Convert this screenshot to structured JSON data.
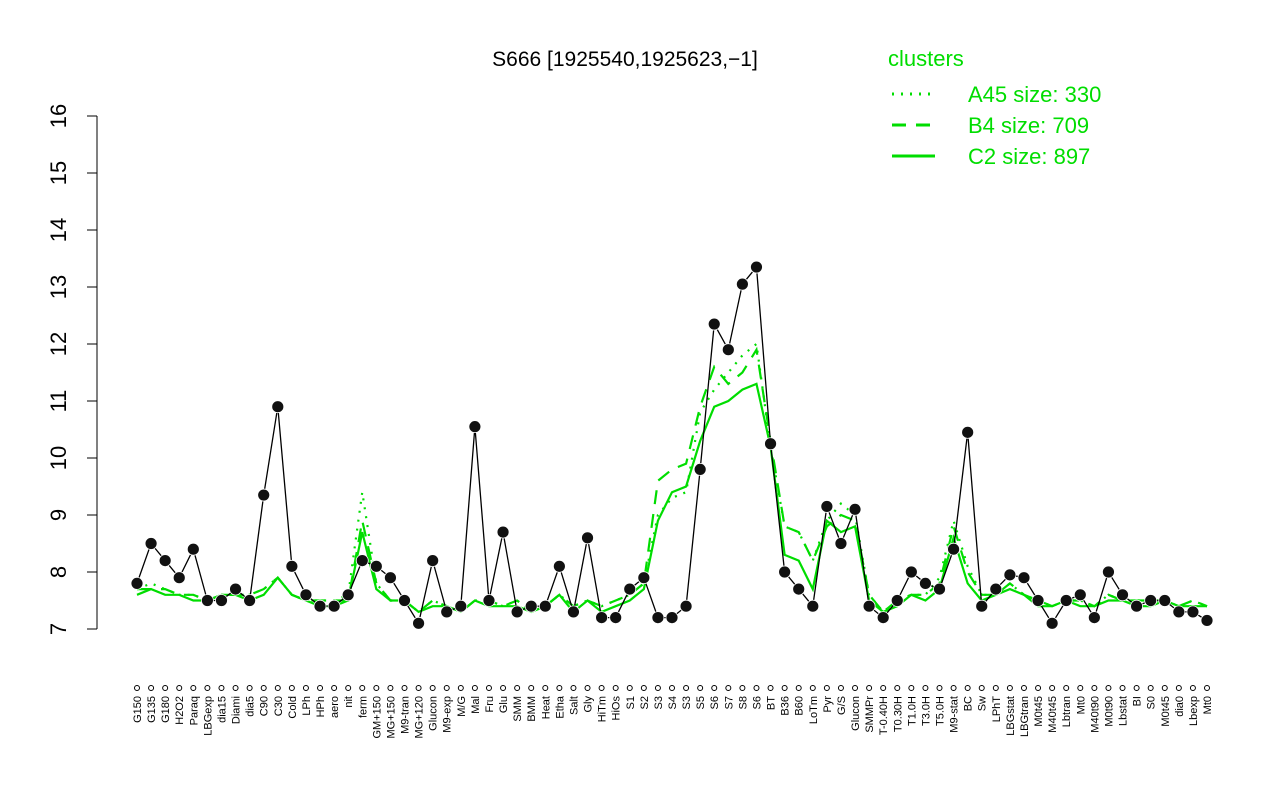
{
  "chart_data": {
    "type": "line",
    "title": "S666 [1925540,1925623,−1]",
    "legend_title": "clusters",
    "legend_position": "top-right",
    "categories": [
      "G150",
      "G135",
      "G180",
      "H2O2",
      "Paraq",
      "LBGexp",
      "dia15",
      "Diami",
      "dia5",
      "C90",
      "C30",
      "Cold",
      "LPh",
      "HPh",
      "aero",
      "nit",
      "ferm",
      "GM+150",
      "MG+150",
      "M9-tran",
      "MG+120",
      "Glucon",
      "M9-exp",
      "M/G",
      "Mal",
      "Fru",
      "Glu",
      "SMM",
      "BMM",
      "Heat",
      "Etha",
      "Salt",
      "Gly",
      "HiTm",
      "HiOs",
      "S1",
      "S2",
      "S3",
      "S4",
      "S3",
      "S5",
      "S6",
      "S7",
      "S8",
      "S6",
      "BT",
      "B36",
      "B60",
      "LoTm",
      "Pyr",
      "G/S",
      "Glucon",
      "SMMPr",
      "T-0.40H",
      "T0.30H",
      "T1.0H",
      "T3.0H",
      "T5.0H",
      "M9-stat",
      "BC",
      "Sw",
      "LPhT",
      "LBGstat",
      "LBGtran",
      "M0t45",
      "M40t45",
      "Lbtran",
      "Mt0",
      "M40t90",
      "M0t90",
      "Lbstat",
      "BI",
      "S0",
      "M0t45",
      "dia0",
      "Lbexp",
      "Mt0"
    ],
    "values": [
      7.8,
      8.5,
      8.2,
      7.9,
      8.4,
      7.5,
      7.5,
      7.7,
      7.5,
      9.35,
      10.9,
      8.1,
      7.6,
      7.4,
      7.4,
      7.6,
      8.2,
      8.1,
      7.9,
      7.5,
      7.1,
      8.2,
      7.3,
      7.4,
      10.55,
      7.5,
      8.7,
      7.3,
      7.4,
      7.4,
      8.1,
      7.3,
      8.6,
      7.2,
      7.2,
      7.7,
      7.9,
      7.2,
      7.2,
      7.4,
      9.8,
      12.35,
      11.9,
      13.05,
      13.35,
      10.25,
      8.0,
      7.7,
      7.4,
      9.15,
      8.5,
      9.1,
      7.4,
      7.2,
      7.5,
      8.0,
      7.8,
      7.7,
      8.4,
      10.45,
      7.4,
      7.7,
      7.95,
      7.9,
      7.5,
      7.1,
      7.5,
      7.6,
      7.2,
      8.0,
      7.6,
      7.4,
      7.5,
      7.5,
      7.3,
      7.3,
      7.15
    ],
    "color": "#000000",
    "series": [
      {
        "name": "A45 size: 330",
        "color": "#00dd00",
        "dash": "dotted",
        "values": [
          7.7,
          7.8,
          7.7,
          7.6,
          7.6,
          7.5,
          7.6,
          7.6,
          7.6,
          7.7,
          7.9,
          7.6,
          7.5,
          7.5,
          7.5,
          7.6,
          9.4,
          7.8,
          7.5,
          7.5,
          7.3,
          7.5,
          7.4,
          7.3,
          7.5,
          7.5,
          7.4,
          7.5,
          7.3,
          7.4,
          7.6,
          7.4,
          7.5,
          7.4,
          7.5,
          7.6,
          7.8,
          9.0,
          9.3,
          9.4,
          10.8,
          11.2,
          11.5,
          11.8,
          12.0,
          10.2,
          8.8,
          8.7,
          8.2,
          8.9,
          9.2,
          9.0,
          7.6,
          7.3,
          7.5,
          7.6,
          7.6,
          7.9,
          8.9,
          8.1,
          7.6,
          7.6,
          7.8,
          7.6,
          7.5,
          7.4,
          7.5,
          7.5,
          7.4,
          7.6,
          7.5,
          7.5,
          7.5,
          7.5,
          7.4,
          7.5,
          7.4
        ]
      },
      {
        "name": "B4 size: 709",
        "color": "#00dd00",
        "dash": "dashed",
        "values": [
          7.7,
          7.7,
          7.7,
          7.6,
          7.6,
          7.5,
          7.6,
          7.6,
          7.6,
          7.7,
          7.9,
          7.6,
          7.5,
          7.5,
          7.5,
          7.5,
          8.9,
          7.8,
          7.5,
          7.5,
          7.3,
          7.5,
          7.4,
          7.3,
          7.5,
          7.5,
          7.4,
          7.5,
          7.3,
          7.4,
          7.6,
          7.4,
          7.5,
          7.4,
          7.5,
          7.6,
          7.8,
          9.6,
          9.8,
          9.9,
          10.9,
          11.6,
          11.3,
          11.5,
          11.9,
          10.3,
          8.8,
          8.7,
          8.2,
          8.8,
          9.0,
          8.9,
          7.6,
          7.3,
          7.5,
          7.6,
          7.6,
          7.8,
          8.8,
          8.0,
          7.6,
          7.6,
          7.8,
          7.6,
          7.5,
          7.4,
          7.5,
          7.5,
          7.4,
          7.6,
          7.5,
          7.5,
          7.5,
          7.5,
          7.4,
          7.5,
          7.4
        ]
      },
      {
        "name": "C2 size: 897",
        "color": "#00dd00",
        "dash": "solid",
        "values": [
          7.6,
          7.7,
          7.6,
          7.6,
          7.5,
          7.5,
          7.6,
          7.6,
          7.5,
          7.6,
          7.9,
          7.6,
          7.5,
          7.4,
          7.4,
          7.5,
          8.7,
          7.7,
          7.5,
          7.5,
          7.3,
          7.4,
          7.4,
          7.3,
          7.5,
          7.4,
          7.4,
          7.4,
          7.3,
          7.4,
          7.6,
          7.3,
          7.5,
          7.3,
          7.4,
          7.5,
          7.7,
          8.9,
          9.4,
          9.5,
          10.3,
          10.9,
          11.0,
          11.2,
          11.3,
          10.2,
          8.3,
          8.2,
          7.7,
          8.9,
          8.7,
          8.8,
          7.5,
          7.3,
          7.4,
          7.6,
          7.5,
          7.7,
          8.6,
          7.8,
          7.5,
          7.6,
          7.7,
          7.6,
          7.4,
          7.4,
          7.5,
          7.4,
          7.4,
          7.5,
          7.5,
          7.4,
          7.4,
          7.5,
          7.4,
          7.4,
          7.4
        ]
      }
    ],
    "ylim": [
      7,
      16
    ],
    "yticks": [
      7,
      8,
      9,
      10,
      11,
      12,
      13,
      14,
      15,
      16
    ],
    "grid": false
  }
}
